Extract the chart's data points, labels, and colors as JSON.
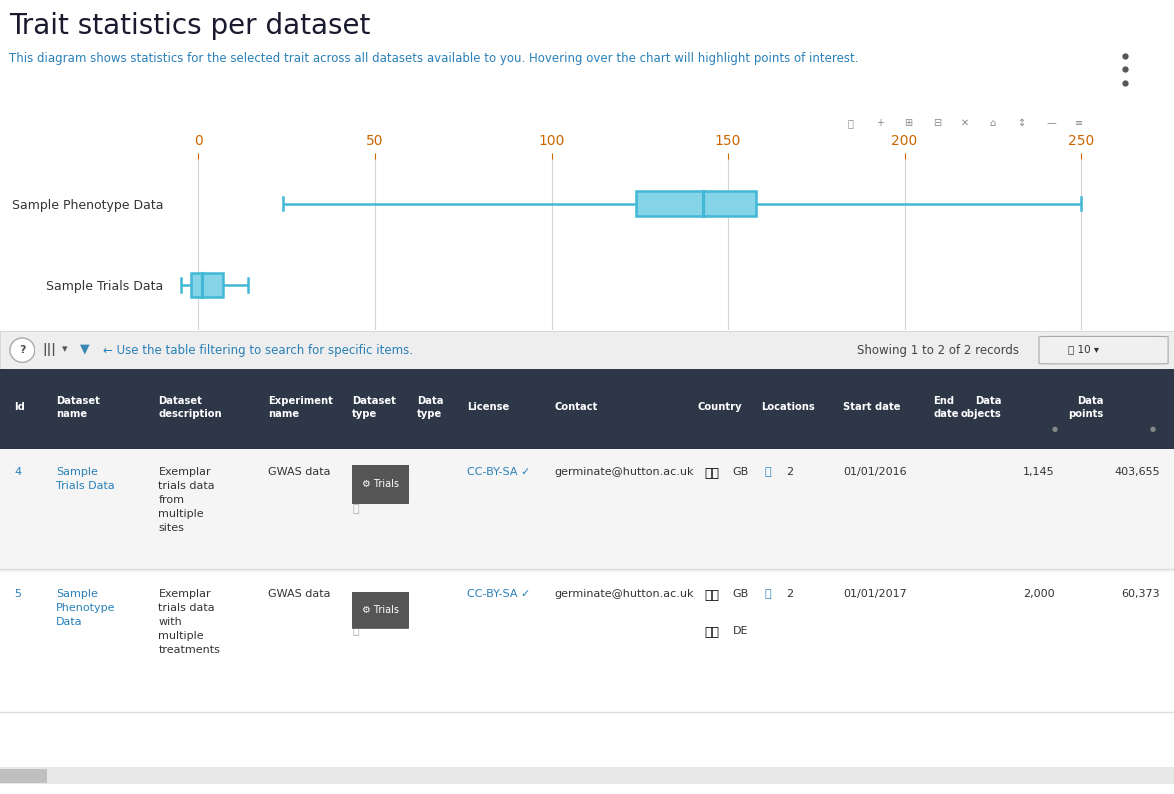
{
  "title": "Trait statistics per dataset",
  "subtitle": "This diagram shows statistics for the selected trait across all datasets available to you. Hovering over the chart will highlight points of interest.",
  "title_color": "#1a1a2e",
  "subtitle_color": "#2980b9",
  "bg_color": "#ffffff",
  "chart_bg": "#ffffff",
  "box_color": "#41b8d5",
  "box_fill": "#85d4e8",
  "whisker_color": "#41b8d5",
  "axis_tick_color": "#cc6600",
  "grid_color": "#d5d5d5",
  "xlim": [
    -8,
    268
  ],
  "xticks": [
    0,
    50,
    100,
    150,
    200,
    250
  ],
  "series": [
    {
      "label": "Sample Phenotype Data",
      "min": 24,
      "q1": 124,
      "median": 143,
      "q3": 158,
      "max": 250
    },
    {
      "label": "Sample Trials Data",
      "min": -5,
      "q1": -2,
      "median": 1,
      "q3": 7,
      "max": 14
    }
  ],
  "table_header_bg": "#2d3748",
  "table_header_fg": "#ffffff",
  "table_row1_bg": "#f2f2f2",
  "table_row2_bg": "#ffffff",
  "link_color": "#2980b9",
  "dark_text": "#333333",
  "badge_bg": "#555555",
  "showing_text": "Showing 1 to 2 of 2 records",
  "filter_text": "← Use the table filtering to search for specific items."
}
